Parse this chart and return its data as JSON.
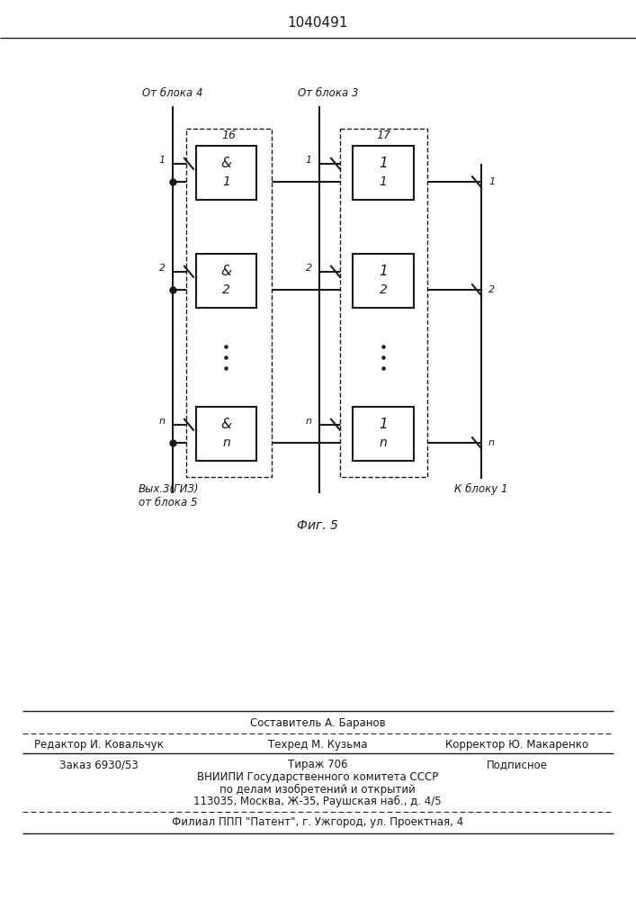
{
  "title_patent": "1040491",
  "fig_label": "Фиг. 5",
  "label_top_left": "От блока 4",
  "label_top_right": "От блока 3",
  "label_bottom_left": "Вых.3(ГИЗ)\nот блока 5",
  "label_bottom_right": "К блоку 1",
  "background_color": "#ffffff",
  "line_color": "#1a1a1a",
  "text_color": "#1a1a1a",
  "footer_line1": "Составитель А. Баранов",
  "footer_line2a": "Редактор И. Ковальчук",
  "footer_line2b": "Техред М. Кузьма",
  "footer_line2c": "Корректор Ю. Макаренко",
  "footer_line3a": "Заказ 6930/53",
  "footer_line3b": "Тираж 706",
  "footer_line3c": "Подписное",
  "footer_line4": "ВНИИПИ Государственного комитета СССР",
  "footer_line5": "по делам изобретений и открытий",
  "footer_line6": "113035, Москва, Ж-35, Раушская наб., д. 4/5",
  "footer_line7": "Филиал ППП \"Патент\", г. Ужгород, ул. Проектная, 4"
}
